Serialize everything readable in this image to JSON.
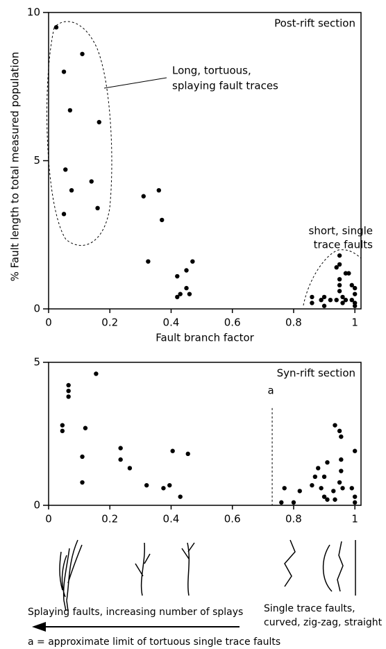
{
  "chart_data": [
    {
      "type": "scatter",
      "title": "Post-rift section",
      "x_label": "Fault branch factor",
      "y_label": "% Fault length to total measured population",
      "xlim": [
        0,
        1.02
      ],
      "ylim": [
        0,
        10
      ],
      "xticks": [
        0,
        0.2,
        0.4,
        0.6,
        0.8,
        1
      ],
      "yticks": [
        0,
        5,
        10
      ],
      "color": "#000000",
      "x": [
        0.025,
        0.05,
        0.11,
        0.07,
        0.165,
        0.055,
        0.075,
        0.14,
        0.05,
        0.16,
        0.31,
        0.36,
        0.37,
        0.325,
        0.42,
        0.45,
        0.47,
        0.42,
        0.43,
        0.45,
        0.46,
        0.86,
        0.86,
        0.89,
        0.9,
        0.9,
        0.92,
        0.94,
        0.95,
        0.95,
        0.94,
        0.95,
        0.95,
        0.95,
        0.96,
        0.96,
        0.97,
        0.98,
        0.97,
        0.99,
        1.0,
        1.0,
        0.99,
        1.0,
        1.0
      ],
      "values": [
        9.5,
        8.0,
        8.6,
        6.7,
        6.3,
        4.7,
        4.0,
        4.3,
        3.2,
        3.4,
        3.8,
        4.0,
        3.0,
        1.6,
        1.1,
        1.3,
        1.6,
        0.4,
        0.5,
        0.7,
        0.5,
        0.4,
        0.2,
        0.3,
        0.1,
        0.4,
        0.3,
        0.3,
        1.8,
        1.5,
        1.4,
        1.0,
        0.8,
        0.6,
        0.4,
        0.2,
        1.2,
        1.2,
        0.3,
        0.8,
        0.7,
        0.5,
        0.3,
        0.1,
        0.2
      ],
      "annotations": [
        "Long, tortuous,",
        "splaying fault traces",
        "short, single",
        "trace faults"
      ]
    },
    {
      "type": "scatter",
      "title": "Syn-rift section",
      "xlim": [
        0,
        1.02
      ],
      "ylim": [
        0,
        5
      ],
      "xticks": [
        0,
        0.2,
        0.4,
        0.6,
        0.8,
        1
      ],
      "yticks": [
        0,
        5
      ],
      "color": "#000000",
      "x": [
        0.045,
        0.045,
        0.065,
        0.065,
        0.065,
        0.155,
        0.12,
        0.11,
        0.11,
        0.235,
        0.235,
        0.265,
        0.32,
        0.375,
        0.395,
        0.405,
        0.43,
        0.455,
        0.76,
        0.77,
        0.8,
        0.82,
        0.86,
        0.87,
        0.88,
        0.89,
        0.9,
        0.9,
        0.91,
        0.91,
        0.93,
        0.935,
        0.935,
        0.95,
        0.955,
        0.955,
        0.95,
        0.955,
        0.96,
        0.99,
        1.0,
        1.0,
        1.0
      ],
      "values": [
        2.8,
        2.6,
        4.2,
        4.0,
        3.8,
        4.6,
        2.7,
        1.7,
        0.8,
        2.0,
        1.6,
        1.3,
        0.7,
        0.6,
        0.7,
        1.9,
        0.3,
        1.8,
        0.1,
        0.6,
        0.1,
        0.5,
        0.7,
        1.0,
        1.3,
        0.6,
        0.3,
        1.0,
        1.5,
        0.2,
        0.5,
        0.2,
        2.8,
        2.6,
        2.4,
        1.6,
        0.8,
        1.2,
        0.6,
        0.6,
        1.9,
        0.3,
        0.1
      ],
      "marker_line": {
        "x": 0.73,
        "label": "a"
      },
      "annotations": [
        "Splaying faults, increasing number of splays",
        "Single trace faults,",
        "curved, zig-zag, straight",
        "a = approximate limit of tortuous single trace faults"
      ]
    }
  ]
}
